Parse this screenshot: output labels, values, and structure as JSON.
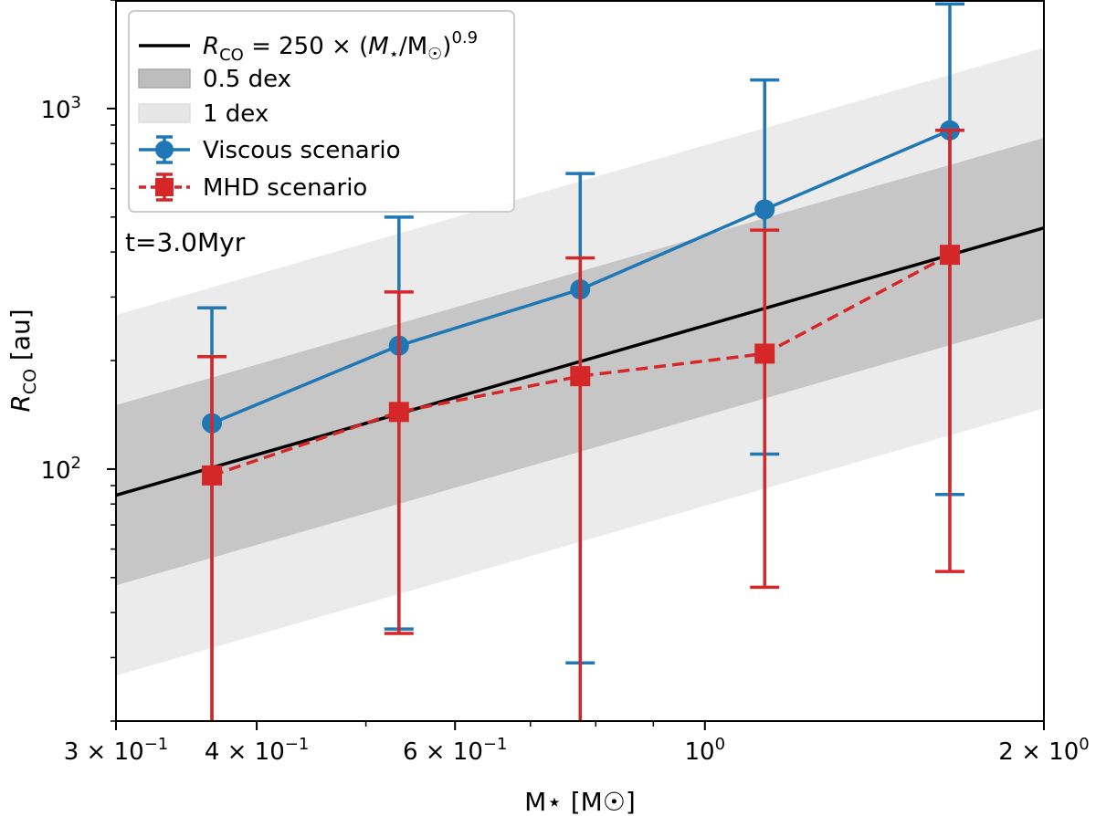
{
  "chart_data": {
    "type": "line",
    "title": "",
    "xlabel": "M⋆ [M☉]",
    "ylabel": "R",
    "ylabel_sub": "CO",
    "ylabel_unit": "[au]",
    "xscale": "log",
    "yscale": "log",
    "xlim": [
      0.3,
      2.0
    ],
    "ylim": [
      20,
      2000
    ],
    "annotation": "t=3.0Myr",
    "x": [
      0.365,
      0.535,
      0.775,
      1.13,
      1.65
    ],
    "series": [
      {
        "name": "Viscous scenario",
        "color": "#1f77b4",
        "linestyle": "solid",
        "marker": "circle",
        "values": [
          134,
          220,
          315,
          525,
          870
        ],
        "err_low": [
          0,
          36,
          29,
          110,
          85
        ],
        "err_high": [
          280,
          500,
          660,
          1200,
          1950
        ]
      },
      {
        "name": "MHD scenario",
        "color": "#d62728",
        "linestyle": "dashed",
        "marker": "square",
        "values": [
          96,
          144,
          181,
          209,
          393
        ],
        "err_low": [
          0,
          35,
          0,
          47,
          52
        ],
        "err_high": [
          205,
          310,
          385,
          460,
          870
        ]
      }
    ],
    "reference": {
      "name": "R_CO = 250 × (M⋆/M☉)^0.9",
      "coefficient": 250,
      "exponent": 0.9,
      "bands": [
        {
          "label": "0.5 dex",
          "half_width_dex": 0.25,
          "color": "#bdbdbd"
        },
        {
          "label": "1 dex",
          "half_width_dex": 0.5,
          "color": "#e6e6e6"
        }
      ]
    },
    "legend": {
      "placement": "top-left",
      "entries": [
        "R_CO = 250 × (M⋆/M☉)^0.9",
        "0.5 dex",
        "1 dex",
        "Viscous scenario",
        "MHD scenario"
      ]
    },
    "xticks": [
      {
        "value": 0.3,
        "mantissa": "3",
        "exp": "−1"
      },
      {
        "value": 0.4,
        "mantissa": "4",
        "exp": "−1"
      },
      {
        "value": 0.6,
        "mantissa": "6",
        "exp": "−1"
      },
      {
        "value": 1.0,
        "mantissa": "",
        "exp": "0"
      },
      {
        "value": 2.0,
        "mantissa": "2",
        "exp": "0"
      }
    ],
    "yticks": [
      {
        "value": 100,
        "exp": "2"
      },
      {
        "value": 1000,
        "exp": "3"
      }
    ]
  }
}
